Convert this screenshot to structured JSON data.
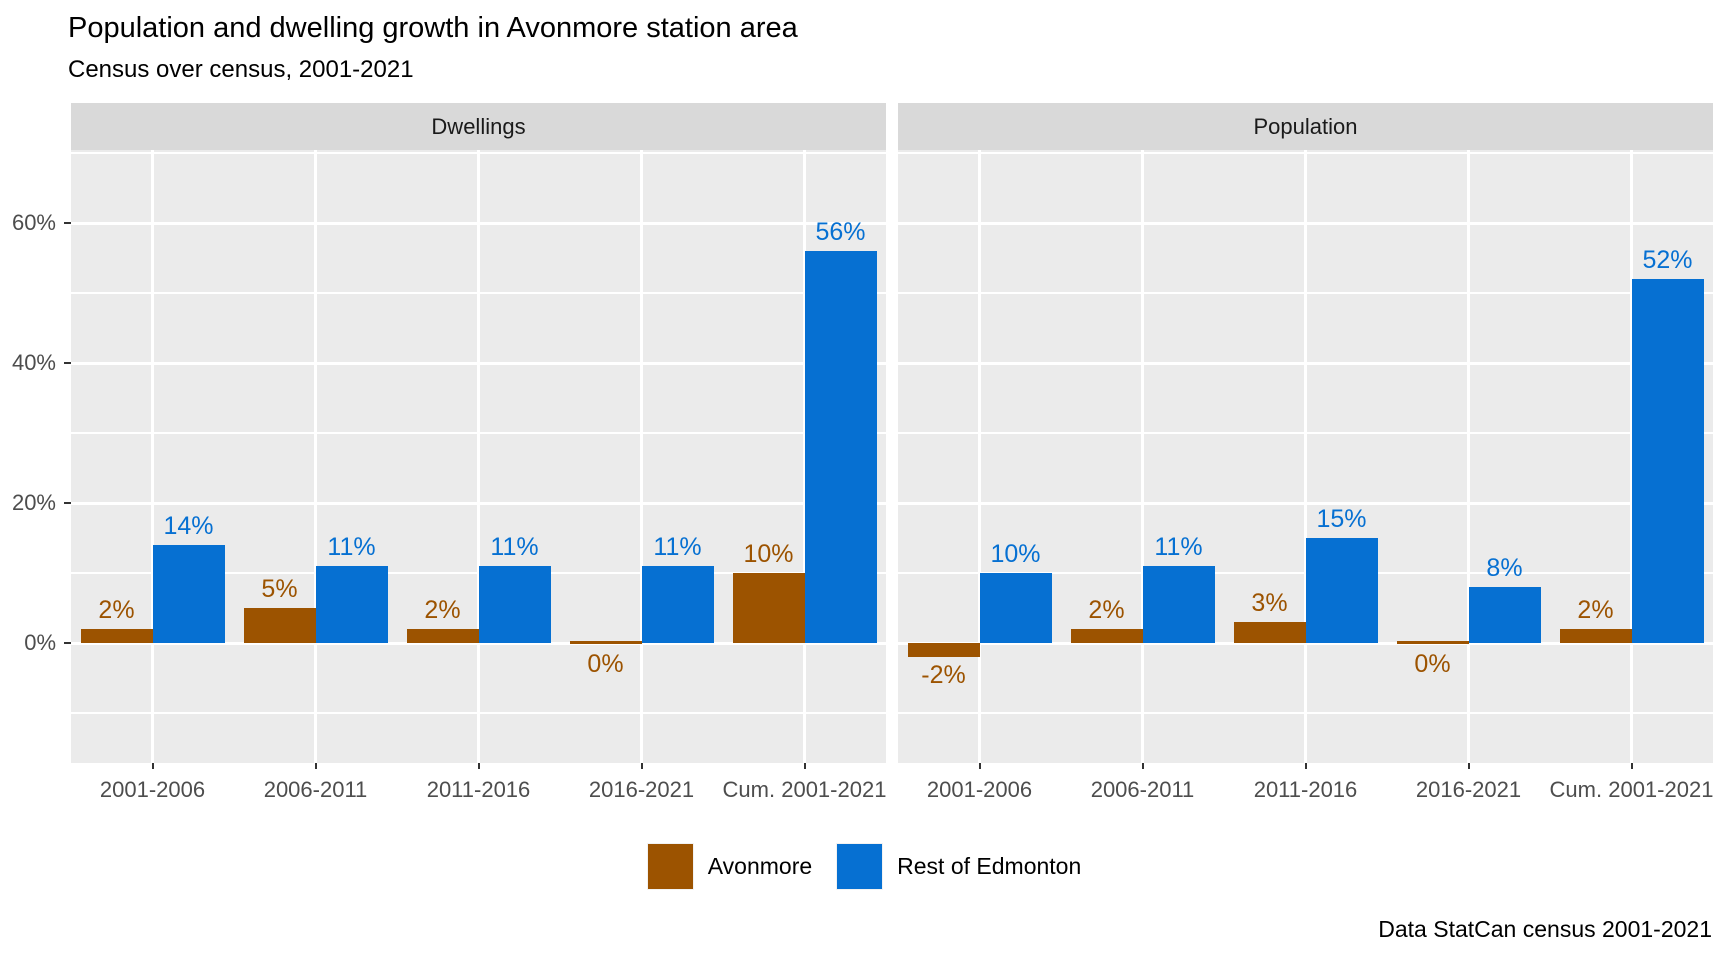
{
  "title": "Population and dwelling growth in Avonmore station area",
  "subtitle": "Census over census, 2001-2021",
  "caption": "Data StatCan census 2001-2021",
  "colors": {
    "avonmore": "#9C5300",
    "rest_of_edmonton": "#0670D2",
    "panel_background": "#EBEBEB",
    "strip_background": "#D9D9D9",
    "gridline": "#FFFFFF",
    "axis_text": "#4D4D4D",
    "tick_mark": "#333333"
  },
  "legend": {
    "position": "bottom",
    "items": [
      {
        "label": "Avonmore",
        "color": "#9C5300"
      },
      {
        "label": "Rest of Edmonton",
        "color": "#0670D2"
      }
    ]
  },
  "chart_data": {
    "type": "bar",
    "title": "Population and dwelling growth in Avonmore station area",
    "subtitle": "Census over census, 2001-2021",
    "caption": "Data StatCan census 2001-2021",
    "grid": true,
    "legend_position": "bottom",
    "categories": [
      "2001-2006",
      "2006-2011",
      "2011-2016",
      "2016-2021",
      "Cum. 2001-2021"
    ],
    "y_axis": {
      "tick_values": [
        0,
        20,
        40,
        60
      ],
      "tick_labels": [
        "0%",
        "20%",
        "40%",
        "60%"
      ],
      "minor_tick_values": [
        -10,
        10,
        30,
        50,
        70
      ],
      "range": [
        -17,
        70.4
      ],
      "unit": "percent"
    },
    "facets": [
      {
        "label": "Dwellings",
        "series": [
          {
            "name": "Avonmore",
            "color": "#9C5300",
            "values": [
              2,
              5,
              2,
              0,
              10
            ],
            "labels": [
              "2%",
              "5%",
              "2%",
              "0%",
              "10%"
            ]
          },
          {
            "name": "Rest of Edmonton",
            "color": "#0670D2",
            "values": [
              14,
              11,
              11,
              11,
              56
            ],
            "labels": [
              "14%",
              "11%",
              "11%",
              "11%",
              "56%"
            ]
          }
        ]
      },
      {
        "label": "Population",
        "series": [
          {
            "name": "Avonmore",
            "color": "#9C5300",
            "values": [
              -2,
              2,
              3,
              0,
              2
            ],
            "labels": [
              "-2%",
              "2%",
              "3%",
              "0%",
              "2%"
            ]
          },
          {
            "name": "Rest of Edmonton",
            "color": "#0670D2",
            "values": [
              10,
              11,
              15,
              8,
              52
            ],
            "labels": [
              "10%",
              "11%",
              "15%",
              "8%",
              "52%"
            ]
          }
        ]
      }
    ]
  }
}
